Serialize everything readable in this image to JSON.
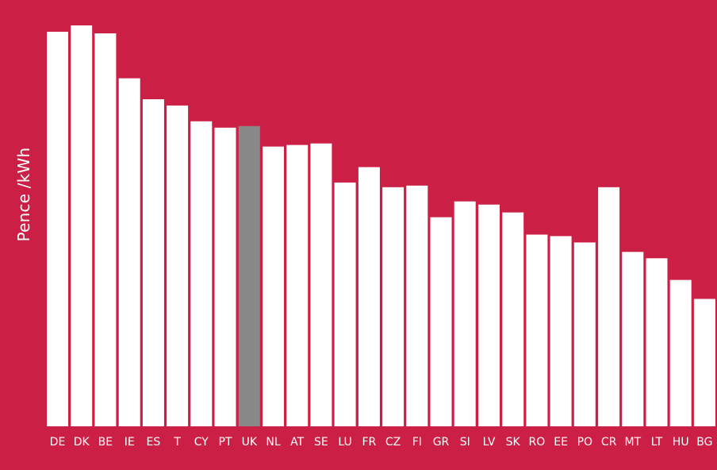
{
  "chart_data": {
    "type": "bar",
    "ylabel": "Pence /kWh",
    "categories": [
      "DE",
      "DK",
      "BE",
      "IE",
      "ES",
      "T",
      "CY",
      "PT",
      "UK",
      "NL",
      "AT",
      "SE",
      "LU",
      "FR",
      "CZ",
      "FI",
      "GR",
      "SI",
      "LV",
      "SK",
      "RO",
      "EE",
      "PO",
      "CR",
      "MT",
      "LT",
      "HU",
      "BG"
    ],
    "values": [
      100,
      101.6,
      99.6,
      88.2,
      82.9,
      81.3,
      77.3,
      75.7,
      76.1,
      70.9,
      71.3,
      71.7,
      61.8,
      65.7,
      60.6,
      61.0,
      53.0,
      57.0,
      56.2,
      54.2,
      48.6,
      48.2,
      46.6,
      60.6,
      44.2,
      42.6,
      37.1,
      32.3
    ],
    "highlight_category": "UK",
    "colors": {
      "background": "#cc1f45",
      "bar": "#ffffff",
      "highlight": "#888888",
      "text": "#ffffff"
    }
  }
}
